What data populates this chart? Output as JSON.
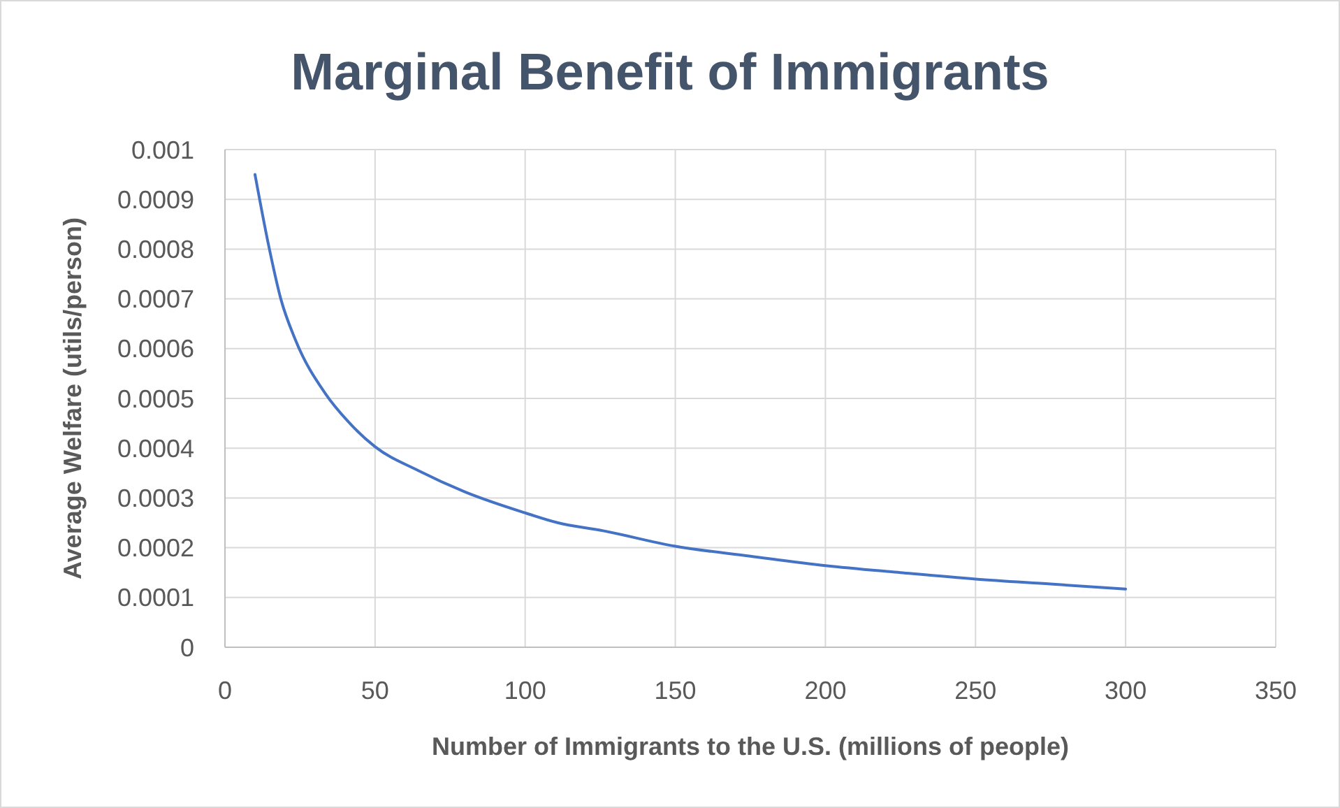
{
  "chart_data": {
    "type": "line",
    "title": "Marginal Benefit of Immigrants",
    "xlabel": "Number of Immigrants to the U.S. (millions of people)",
    "ylabel": "Average Welfare (utils/person)",
    "x": [
      10,
      14.8,
      18.6,
      23.3,
      33.4,
      41.1,
      50,
      64.4,
      80,
      100,
      111,
      126,
      150,
      175,
      200,
      225,
      250,
      275,
      300
    ],
    "series": [
      {
        "color": "#4472c4",
        "values": [
          0.00095,
          0.0008,
          0.0007,
          0.00062,
          0.00051,
          0.000453,
          0.000403,
          0.000355,
          0.000312,
          0.00027,
          0.00025,
          0.000234,
          0.000203,
          0.000183,
          0.000164,
          0.00015,
          0.000137,
          0.000127,
          0.000117
        ]
      }
    ],
    "xlim": [
      0,
      350
    ],
    "xticks": [
      0,
      50,
      100,
      150,
      200,
      250,
      300,
      350
    ],
    "ylim": [
      0,
      0.001
    ],
    "yticks": [
      0,
      0.0001,
      0.0002,
      0.0003,
      0.0004,
      0.0005,
      0.0006,
      0.0007,
      0.0008,
      0.0009,
      0.001
    ],
    "grid": true,
    "marker": "none",
    "line_style": "solid"
  }
}
